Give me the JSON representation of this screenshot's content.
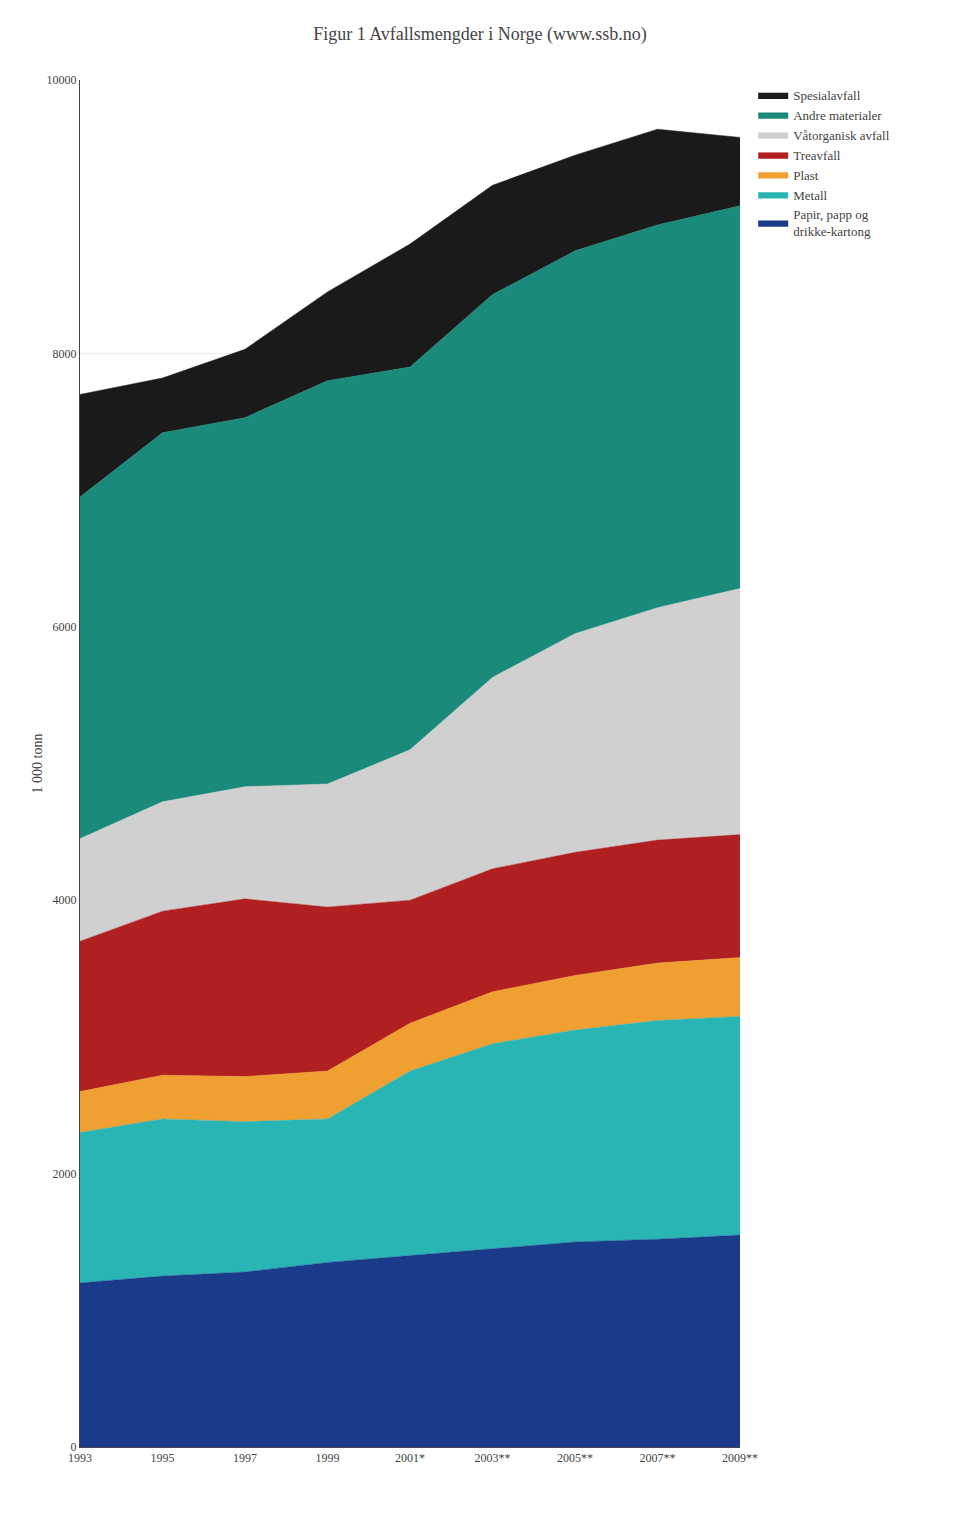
{
  "chart_data": {
    "type": "area",
    "title": "Figur 1 Avfallsmengder i Norge (www.ssb.no)",
    "ylabel": "1 000 tonn",
    "x": [
      1993,
      1995,
      1997,
      1999,
      2001,
      2003,
      2005,
      2007,
      2009
    ],
    "xlim": [
      1993,
      2009
    ],
    "xticks": [
      1993,
      1995,
      1997,
      1999,
      {
        "value": 2001,
        "label": "2001*"
      },
      {
        "value": 2003,
        "label": "2003**"
      },
      {
        "value": 2005,
        "label": "2005**"
      },
      {
        "value": 2007,
        "label": "2007**"
      },
      {
        "value": 2009,
        "label": "2009**"
      }
    ],
    "ylim": [
      0,
      10000
    ],
    "yticks": [
      0,
      2000,
      4000,
      6000,
      8000,
      10000
    ],
    "stacked": true,
    "grid": "y",
    "legend": "right",
    "series": [
      {
        "name": "Papir, papp og\ndrikke-kartong",
        "color": "#1a3a8a",
        "values": [
          1200,
          1250,
          1280,
          1350,
          1400,
          1450,
          1500,
          1520,
          1550
        ]
      },
      {
        "name": "Metall",
        "color": "#2ab5b5",
        "values": [
          1100,
          1150,
          1100,
          1050,
          1350,
          1500,
          1550,
          1600,
          1600
        ]
      },
      {
        "name": "Plast",
        "color": "#f0a030",
        "values": [
          300,
          320,
          330,
          350,
          350,
          380,
          400,
          420,
          430
        ]
      },
      {
        "name": "Treavfall",
        "color": "#b02020",
        "values": [
          1100,
          1200,
          1300,
          1200,
          900,
          900,
          900,
          900,
          900
        ]
      },
      {
        "name": "Våtorganisk avfall",
        "color": "#d0d0d0",
        "values": [
          750,
          800,
          820,
          900,
          1100,
          1400,
          1600,
          1700,
          1800
        ]
      },
      {
        "name": "Andre materialer",
        "color": "#1a8a7a",
        "values": [
          2500,
          2700,
          2700,
          2950,
          2800,
          2800,
          2800,
          2800,
          2800
        ]
      },
      {
        "name": "Spesialavfall",
        "color": "#1a1a1a",
        "values": [
          750,
          400,
          500,
          650,
          900,
          800,
          700,
          700,
          500
        ]
      }
    ]
  }
}
